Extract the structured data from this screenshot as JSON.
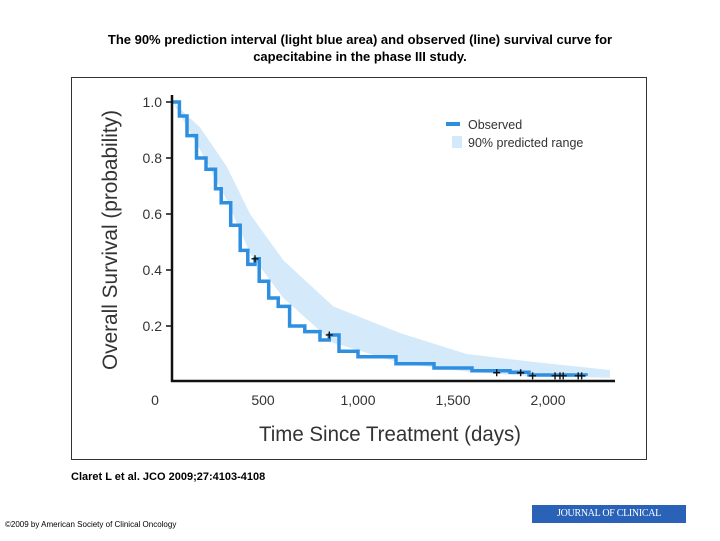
{
  "title_line1": "The 90% prediction interval (light blue area) and observed (line) survival curve for",
  "title_line2": "capecitabine in the phase III study.",
  "citation": "Claret L et al. JCO 2009;27:4103-4108",
  "copyright": "©2009 by American Society of Clinical Oncology",
  "journal_logo": "JOURNAL OF CLINICAL ONCOLOGY",
  "chart_data": {
    "type": "line",
    "xlabel": "Time Since Treatment (days)",
    "ylabel": "Overall Survival (probability)",
    "xlim": [
      0,
      2350
    ],
    "ylim": [
      0,
      1.0
    ],
    "x_ticks": [
      0,
      500,
      1000,
      1500,
      2000
    ],
    "x_tick_labels": [
      "0",
      "500",
      "1,000",
      "1,500",
      "2,000"
    ],
    "y_ticks": [
      0.2,
      0.4,
      0.6,
      0.8,
      1.0
    ],
    "y_tick_labels": [
      "0.2",
      "0.4",
      "0.6",
      "0.8",
      "1.0"
    ],
    "legend_position": "top-right",
    "colors": {
      "observed": "#2e8fe0",
      "band": "#d4eafa"
    },
    "series": [
      {
        "name": "Observed",
        "type": "step",
        "x": [
          25,
          60,
          100,
          150,
          200,
          250,
          280,
          330,
          380,
          420,
          458,
          480,
          530,
          580,
          640,
          720,
          800,
          849,
          900,
          1000,
          1200,
          1400,
          1600,
          1800,
          1900,
          2200
        ],
        "y": [
          1.0,
          0.95,
          0.88,
          0.8,
          0.76,
          0.69,
          0.64,
          0.56,
          0.47,
          0.42,
          0.44,
          0.36,
          0.3,
          0.27,
          0.2,
          0.18,
          0.15,
          0.168,
          0.11,
          0.09,
          0.065,
          0.05,
          0.04,
          0.035,
          0.025,
          0.022
        ]
      },
      {
        "name": "90% predicted range",
        "type": "band",
        "x": [
          25,
          168,
          309,
          432,
          607,
          870,
          1221,
          1572,
          1921,
          2326
        ],
        "upper": [
          1.0,
          0.91,
          0.77,
          0.6,
          0.435,
          0.27,
          0.175,
          0.1,
          0.072,
          0.043
        ],
        "lower": [
          1.0,
          0.83,
          0.65,
          0.46,
          0.3,
          0.14,
          0.068,
          0.037,
          0.02,
          0.015
        ]
      }
    ],
    "censored": {
      "x": [
        458,
        849,
        1730,
        1856,
        1919,
        2037,
        2063,
        2080,
        2159,
        2177
      ],
      "y": [
        0.44,
        0.168,
        0.033,
        0.033,
        0.022,
        0.022,
        0.022,
        0.022,
        0.022,
        0.022
      ]
    }
  }
}
